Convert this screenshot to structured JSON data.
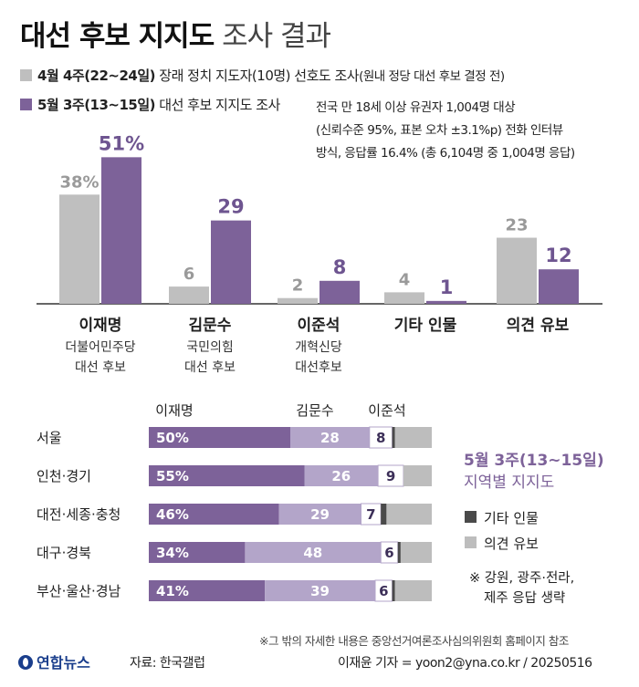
{
  "title": {
    "bold": "대선 후보 지지도",
    "rest": "조사 결과"
  },
  "legend": [
    {
      "bold": "4월 4주(22~24일)",
      "text": " 장래 정치 지도자(10명) 선호도 조사",
      "small": "(원내 정당 대선 후보 결정 전)",
      "color": "#bfbfbf"
    },
    {
      "bold": "5월 3주(13~15일)",
      "text": " 대선 후보 지지도 조사",
      "small": "",
      "color": "#7d6299"
    }
  ],
  "survey_note": [
    "전국 만 18세 이상 유권자 1,004명 대상",
    "(신뢰수준 95%, 표본 오차 ±3.1%p) 전화 인터뷰",
    "방식, 응답률 16.4% (총 6,104명 중 1,004명 응답)"
  ],
  "colors": {
    "april": "#bfbfbf",
    "may": "#7d6299",
    "may_light": "#b3a5c9",
    "etc": "#4a4a4a",
    "undecided": "#bdbdbd",
    "label_gray": "#9a9a9a",
    "label_purple": "#6e5590"
  },
  "chart_data": [
    {
      "type": "bar",
      "categories": [
        "이재명",
        "김문수",
        "이준석",
        "기타 인물",
        "의견 유보"
      ],
      "category_sublabels": [
        [
          "더불어민주당",
          "대선 후보"
        ],
        [
          "국민의힘",
          "대선 후보"
        ],
        [
          "개혁신당",
          "대선후보"
        ],
        [],
        []
      ],
      "series": [
        {
          "name": "4월 4주(22~24일)",
          "values": [
            38,
            6,
            2,
            4,
            23
          ],
          "labels": [
            "38%",
            "6",
            "2",
            "4",
            "23"
          ]
        },
        {
          "name": "5월 3주(13~15일)",
          "values": [
            51,
            29,
            8,
            1,
            12
          ],
          "labels": [
            "51%",
            "29",
            "8",
            "1",
            "12"
          ]
        }
      ],
      "ylim": [
        0,
        60
      ]
    },
    {
      "type": "bar",
      "orientation": "horizontal-stacked",
      "title": "5월 3주(13~15일)",
      "subtitle": "지역별 지지도",
      "column_headers": [
        "이재명",
        "김문수",
        "이준석"
      ],
      "categories": [
        "서울",
        "인천·경기",
        "대전·세종·충청",
        "대구·경북",
        "부산·울산·경남"
      ],
      "series": [
        {
          "name": "이재명",
          "values": [
            50,
            55,
            46,
            34,
            41
          ],
          "labels": [
            "50%",
            "55%",
            "46%",
            "34%",
            "41%"
          ]
        },
        {
          "name": "김문수",
          "values": [
            28,
            26,
            29,
            48,
            39
          ],
          "labels": [
            "28",
            "26",
            "29",
            "48",
            "39"
          ]
        },
        {
          "name": "이준석",
          "values": [
            8,
            9,
            7,
            6,
            6
          ],
          "labels": [
            "8",
            "9",
            "7",
            "6",
            "6"
          ]
        },
        {
          "name": "기타 인물",
          "values": [
            1,
            0,
            2,
            1,
            1
          ]
        },
        {
          "name": "의견 유보",
          "values": [
            13,
            10,
            16,
            11,
            13
          ]
        }
      ],
      "legend": [
        "기타 인물",
        "의견 유보"
      ],
      "footnote": [
        "※ 강원, 광주·전라,",
        "제주 응답 생략"
      ],
      "xlim": [
        0,
        100
      ]
    }
  ],
  "footer": {
    "source_note": "※그 밖의 자세한 내용은 중앙선거여론조사심의위원회 홈페이지 참조",
    "logo": "연합뉴스",
    "source": "자료: 한국갤럽",
    "credit": "이재윤 기자 = yoon2@yna.co.kr / 20250516"
  }
}
